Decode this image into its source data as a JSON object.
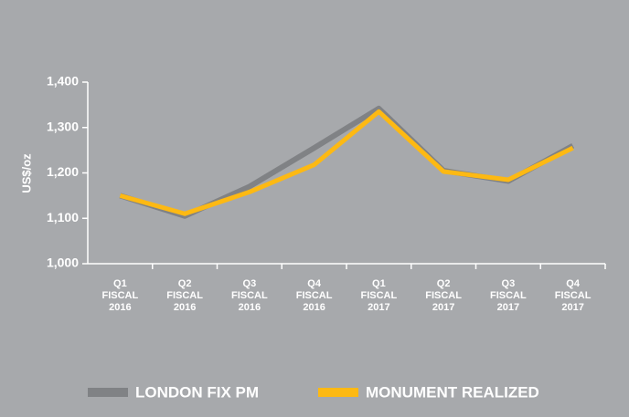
{
  "chart_data": {
    "type": "line",
    "y_label": "US$/oz",
    "categories": [
      "Q1 FISCAL 2016",
      "Q2 FISCAL 2016",
      "Q3 FISCAL 2016",
      "Q4 FISCAL 2016",
      "Q1 FISCAL 2017",
      "Q2 FISCAL 2017",
      "Q3 FISCAL 2017",
      "Q4 FISCAL 2017"
    ],
    "series": [
      {
        "name": "LONDON FIX PM",
        "color": "#808285",
        "values": [
          1150,
          1105,
          1170,
          1255,
          1342,
          1205,
          1182,
          1260
        ]
      },
      {
        "name": "MONUMENT REALIZED",
        "color": "#fdb913",
        "values": [
          1150,
          1110,
          1158,
          1218,
          1335,
          1203,
          1185,
          1255
        ]
      }
    ],
    "ylim": [
      1000,
      1400
    ],
    "yticks": [
      {
        "value": 1000,
        "label": "1,000"
      },
      {
        "value": 1100,
        "label": "1,100"
      },
      {
        "value": 1200,
        "label": "1,200"
      },
      {
        "value": 1300,
        "label": "1,300"
      },
      {
        "value": 1400,
        "label": "1,400"
      }
    ],
    "legend": "bottom"
  }
}
